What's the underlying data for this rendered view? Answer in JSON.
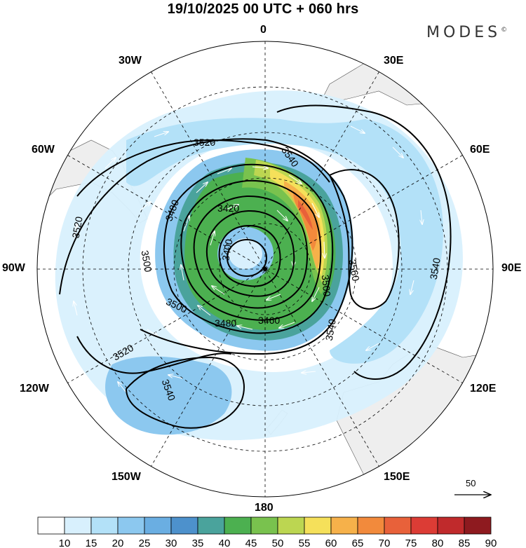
{
  "title": "19/10/2025  00 UTC  + 060 hrs",
  "brand": "MODES",
  "brand_mark": "©",
  "longitude_labels": {
    "lon_0": "0",
    "lon_30e": "30E",
    "lon_60e": "60E",
    "lon_90e": "90E",
    "lon_120e": "120E",
    "lon_150e": "150E",
    "lon_180": "180",
    "lon_150w": "150W",
    "lon_120w": "120W",
    "lon_90w": "90W",
    "lon_60w": "60W",
    "lon_30w": "30W"
  },
  "contour_labels": {
    "c3520_top": "3520",
    "c3540_top": "3540",
    "c3480": "3480",
    "c3420": "3420",
    "c3400": "3400",
    "c3500_left": "3500",
    "c3520_left": "3520",
    "c3560": "3560",
    "c3540_right": "3540",
    "c3500_right": "3500",
    "c3540_mid": "3540",
    "c3500_lower": "3500",
    "c3480_lower": "3480",
    "c3460_lower": "3460",
    "c3520_lower": "3520",
    "c3540_lower": "3540"
  },
  "wind_reference": {
    "value": "50"
  },
  "colorbar": {
    "ticks": [
      "10",
      "15",
      "20",
      "25",
      "30",
      "35",
      "40",
      "45",
      "50",
      "55",
      "60",
      "65",
      "70",
      "75",
      "80",
      "85",
      "90"
    ],
    "colors": [
      "#ffffff",
      "#d8f0fd",
      "#b3e1f8",
      "#8cc8ef",
      "#6aaee2",
      "#4d91cc",
      "#4aa39c",
      "#4cb050",
      "#79c24e",
      "#bcd651",
      "#f5e05a",
      "#f6b14a",
      "#f28a3c",
      "#e8613a",
      "#dc3c35",
      "#c02a2c",
      "#8e1a1f"
    ]
  }
}
